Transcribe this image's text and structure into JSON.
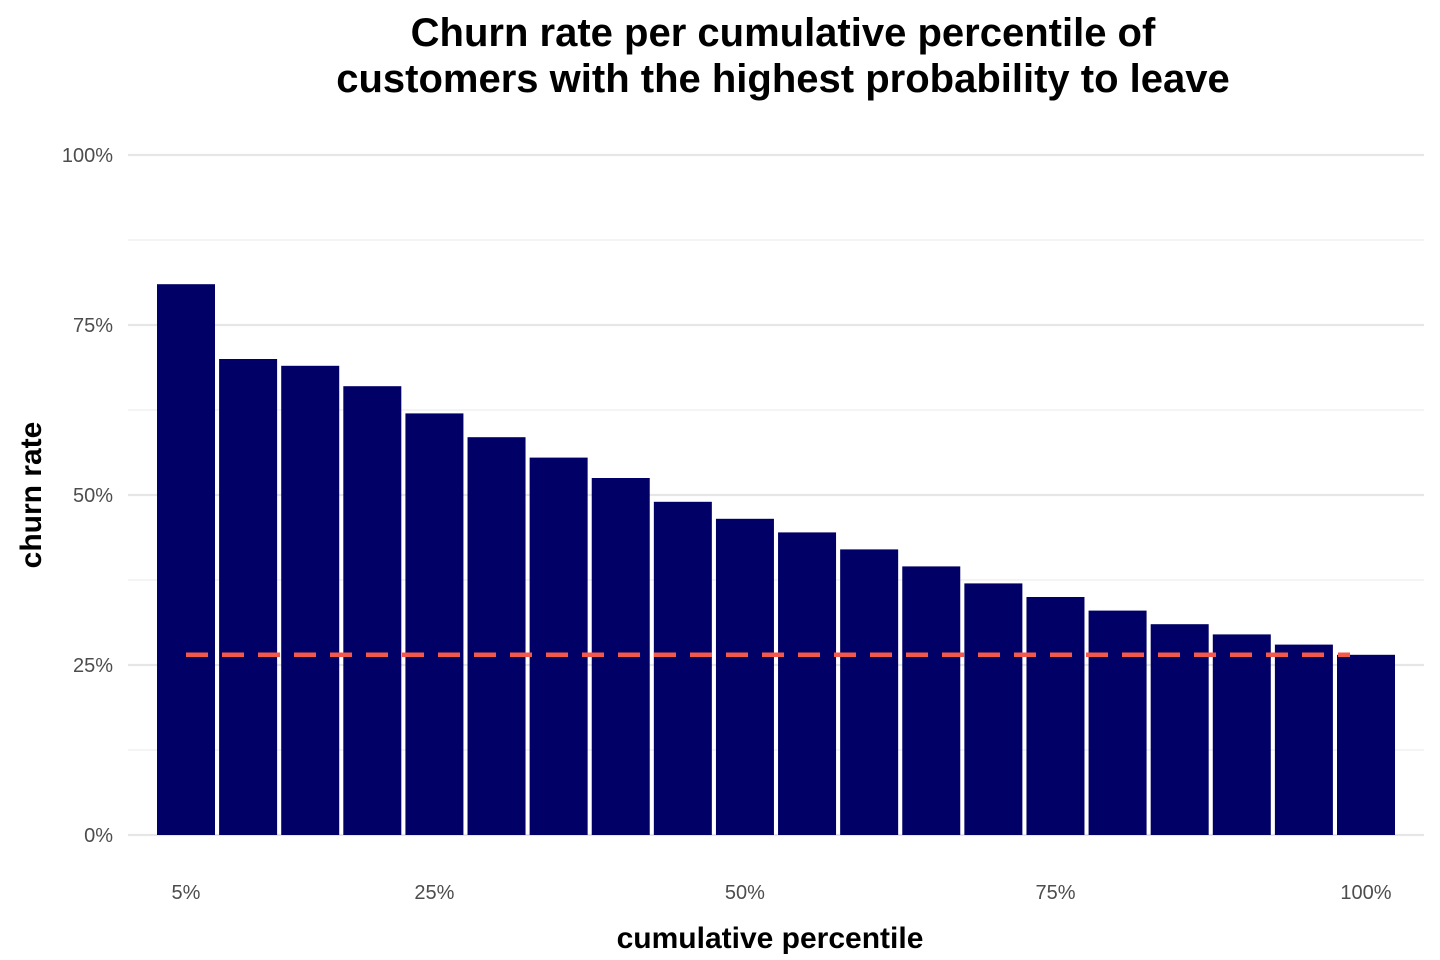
{
  "chart_data": {
    "type": "bar",
    "title_lines": [
      "Churn rate per cumulative percentile of",
      "customers  with the highest probability to leave"
    ],
    "xlabel": "cumulative percentile",
    "ylabel": "churn rate",
    "x_values": [
      5,
      10,
      15,
      20,
      25,
      30,
      35,
      40,
      45,
      50,
      55,
      60,
      65,
      70,
      75,
      80,
      85,
      90,
      95,
      100
    ],
    "values": [
      0.81,
      0.7,
      0.69,
      0.66,
      0.62,
      0.585,
      0.555,
      0.525,
      0.49,
      0.465,
      0.445,
      0.42,
      0.395,
      0.37,
      0.35,
      0.33,
      0.31,
      0.295,
      0.28,
      0.265
    ],
    "bar_color": "#000066",
    "reference_line": {
      "value": 0.265,
      "color": "#f4574b",
      "style": "dashed"
    },
    "ylim": [
      0,
      1
    ],
    "y_ticks": [
      0,
      0.25,
      0.5,
      0.75,
      1.0
    ],
    "y_tick_labels": [
      "0%",
      "25%",
      "50%",
      "75%",
      "100%"
    ],
    "x_ticks": [
      5,
      25,
      50,
      75,
      100
    ],
    "x_tick_labels": [
      "5%",
      "25%",
      "50%",
      "75%",
      "100%"
    ],
    "grid": true
  }
}
